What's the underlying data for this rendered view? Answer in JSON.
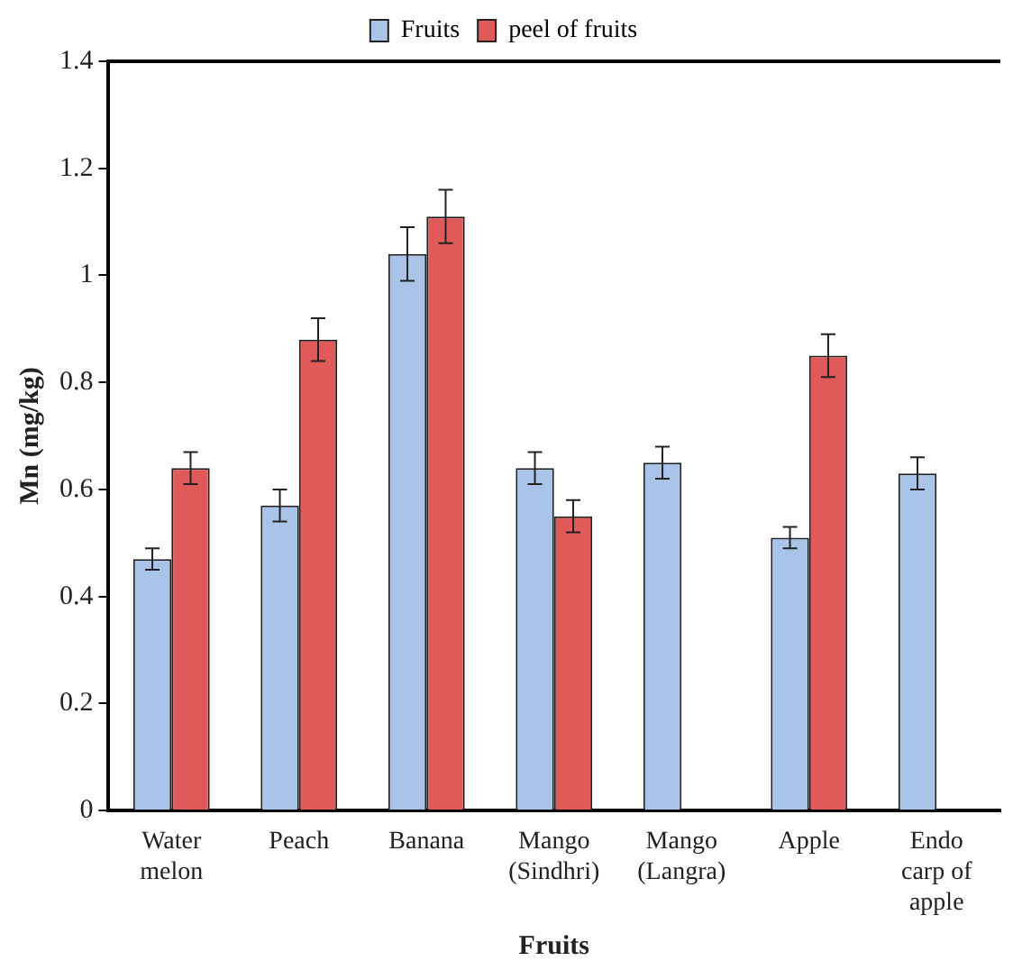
{
  "chart_data": {
    "type": "bar",
    "xlabel": "Fruits",
    "ylabel": "Mn (mg/kg)",
    "categories": [
      "Water melon",
      "Peach",
      "Banana",
      "Mango (Sindhri)",
      "Mango (Langra)",
      "Apple",
      "Endo carp of apple"
    ],
    "series": [
      {
        "name": "Fruits",
        "color": "#a9c4e8",
        "values": [
          0.47,
          0.57,
          1.04,
          0.64,
          0.65,
          0.51,
          0.63
        ],
        "errors": [
          0.02,
          0.03,
          0.05,
          0.03,
          0.03,
          0.02,
          0.03
        ]
      },
      {
        "name": "peel of fruits",
        "color": "#e05a5a",
        "values": [
          0.64,
          0.88,
          1.11,
          0.55,
          null,
          0.85,
          null
        ],
        "errors": [
          0.03,
          0.04,
          0.05,
          0.03,
          null,
          0.04,
          null
        ]
      }
    ],
    "ylim": [
      0,
      1.4
    ],
    "yticks": [
      0,
      0.2,
      0.4,
      0.6,
      0.8,
      1,
      1.2,
      1.4
    ],
    "grid": false,
    "legend": "top"
  }
}
